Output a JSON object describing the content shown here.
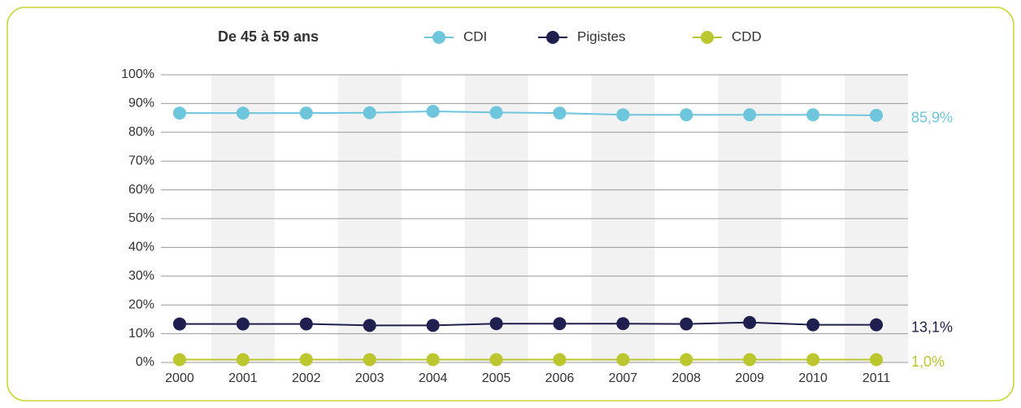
{
  "chart_data": {
    "type": "line",
    "title": "De 45 à 59 ans",
    "categories": [
      "2000",
      "2001",
      "2002",
      "2003",
      "2004",
      "2005",
      "2006",
      "2007",
      "2008",
      "2009",
      "2010",
      "2011"
    ],
    "series": [
      {
        "name": "CDI",
        "color": "#6ec6dd",
        "values": [
          86.7,
          86.7,
          86.7,
          86.8,
          87.3,
          86.9,
          86.7,
          86.1,
          86.1,
          86.1,
          86.1,
          85.9
        ],
        "value_labels": [
          null,
          null,
          null,
          null,
          null,
          null,
          null,
          null,
          null,
          null,
          null,
          "85,9%"
        ]
      },
      {
        "name": "Pigistes",
        "color": "#1f2050",
        "values": [
          13.4,
          13.4,
          13.4,
          12.9,
          12.9,
          13.5,
          13.5,
          13.5,
          13.4,
          13.9,
          13.1,
          13.1
        ],
        "value_labels": [
          null,
          null,
          null,
          null,
          null,
          null,
          null,
          null,
          null,
          null,
          null,
          "13,1%"
        ]
      },
      {
        "name": "CDD",
        "color": "#bcc62e",
        "values": [
          1.0,
          1.0,
          1.0,
          1.0,
          1.0,
          1.0,
          1.0,
          1.0,
          1.0,
          1.0,
          1.0,
          1.0
        ],
        "value_labels": [
          null,
          null,
          null,
          null,
          null,
          null,
          null,
          null,
          null,
          null,
          null,
          "1,0%"
        ]
      }
    ],
    "ylim": [
      0,
      100
    ],
    "yticks": [
      {
        "value": 0,
        "label": "0%"
      },
      {
        "value": 10,
        "label": "10%"
      },
      {
        "value": 20,
        "label": "20%"
      },
      {
        "value": 30,
        "label": "30%"
      },
      {
        "value": 40,
        "label": "40%"
      },
      {
        "value": 50,
        "label": "50%"
      },
      {
        "value": 60,
        "label": "60%"
      },
      {
        "value": 70,
        "label": "70%"
      },
      {
        "value": 80,
        "label": "80%"
      },
      {
        "value": 90,
        "label": "90%"
      },
      {
        "value": 100,
        "label": "100%"
      }
    ],
    "grid": true
  }
}
